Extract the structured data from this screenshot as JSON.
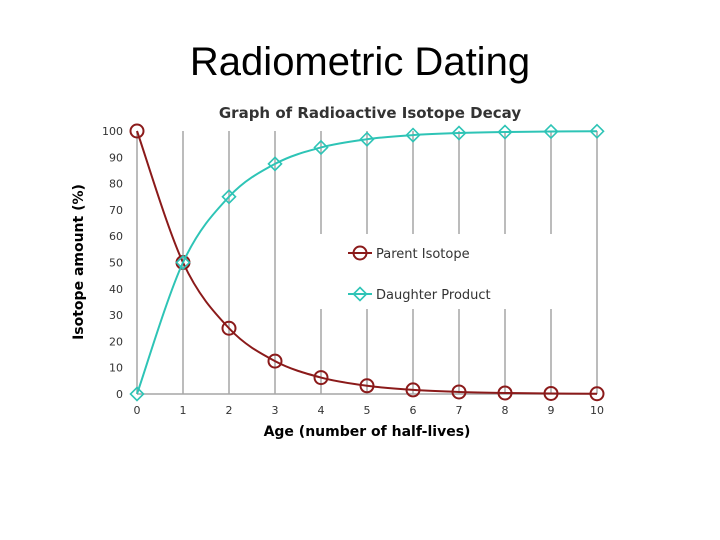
{
  "slide": {
    "title": "Radiometric Dating"
  },
  "chart_data": {
    "type": "line",
    "title": "Graph of Radioactive Isotope Decay",
    "xlabel": "Age  (number of half-lives)",
    "ylabel": "Isotope amount  (%)",
    "x": [
      0,
      1,
      2,
      3,
      4,
      5,
      6,
      7,
      8,
      9,
      10
    ],
    "xlim": [
      0,
      10
    ],
    "ylim": [
      0,
      100
    ],
    "xticks": [
      0,
      1,
      2,
      3,
      4,
      5,
      6,
      7,
      8,
      9,
      10
    ],
    "yticks": [
      0,
      10,
      20,
      30,
      40,
      50,
      60,
      70,
      80,
      90,
      100
    ],
    "grid": "vertical",
    "legend_position": "center-right",
    "series": [
      {
        "name": "Parent Isotope",
        "color": "#8b1a1a",
        "marker": "circle",
        "values": [
          100,
          50,
          25,
          12.5,
          6.25,
          3.125,
          1.5625,
          0.78125,
          0.390625,
          0.1953125,
          0.09765625
        ]
      },
      {
        "name": "Daughter Product",
        "color": "#2ec4b6",
        "marker": "diamond",
        "values": [
          0,
          50,
          75,
          87.5,
          93.75,
          96.875,
          98.4375,
          99.21875,
          99.609375,
          99.8046875,
          99.90234375
        ]
      }
    ]
  }
}
